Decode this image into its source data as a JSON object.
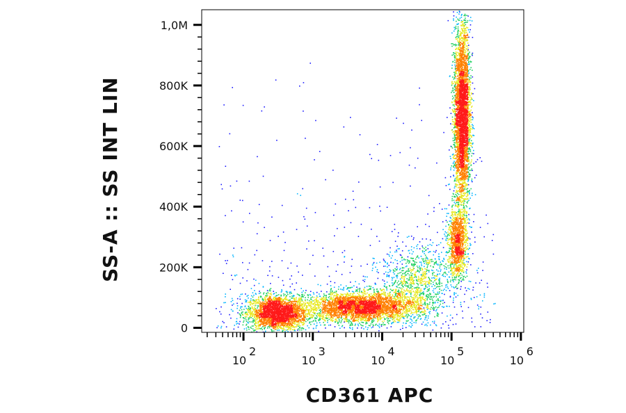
{
  "chart_data": {
    "type": "scatter",
    "subtype": "flow-cytometry-density-dot-plot",
    "title": "",
    "xlabel": "CD361 APC",
    "ylabel": "SS-A :: SS INT LIN",
    "x_scale": "log",
    "xlim": [
      25,
      1100000
    ],
    "ylim": [
      -15000,
      1050000
    ],
    "x_ticks": [
      {
        "value": 100,
        "base": "10",
        "exp": "2"
      },
      {
        "value": 1000,
        "base": "10",
        "exp": "3"
      },
      {
        "value": 10000,
        "base": "10",
        "exp": "4"
      },
      {
        "value": 100000,
        "base": "10",
        "exp": "5"
      },
      {
        "value": 1000000,
        "base": "10",
        "exp": "6"
      }
    ],
    "y_ticks": [
      {
        "value": 0,
        "label": "0"
      },
      {
        "value": 200000,
        "label": "200K"
      },
      {
        "value": 400000,
        "label": "400K"
      },
      {
        "value": 600000,
        "label": "600K"
      },
      {
        "value": 800000,
        "label": "800K"
      },
      {
        "value": 1000000,
        "label": "1,0M"
      }
    ],
    "grid": false,
    "legend": "none",
    "colormap": [
      "#1a1aff",
      "#00b4ff",
      "#20d060",
      "#e8e820",
      "#ff8000",
      "#ff1a1a"
    ],
    "populations": [
      {
        "name": "",
        "x_center": 300,
        "y_center": 50000,
        "x_spread_decades": 0.22,
        "y_spread": 30000,
        "relative_count": 0.22
      },
      {
        "name": "",
        "x_center": 5000,
        "y_center": 70000,
        "x_spread_decades": 0.4,
        "y_spread": 25000,
        "relative_count": 0.28
      },
      {
        "name": "",
        "x_center": 140000,
        "y_center": 700000,
        "x_spread_decades": 0.06,
        "y_spread": 150000,
        "relative_count": 0.32
      },
      {
        "name": "",
        "x_center": 120000,
        "y_center": 280000,
        "x_spread_decades": 0.07,
        "y_spread": 60000,
        "relative_count": 0.1
      },
      {
        "name": "",
        "x_center": 30000,
        "y_center": 150000,
        "x_spread_decades": 0.25,
        "y_spread": 60000,
        "relative_count": 0.08
      }
    ]
  }
}
